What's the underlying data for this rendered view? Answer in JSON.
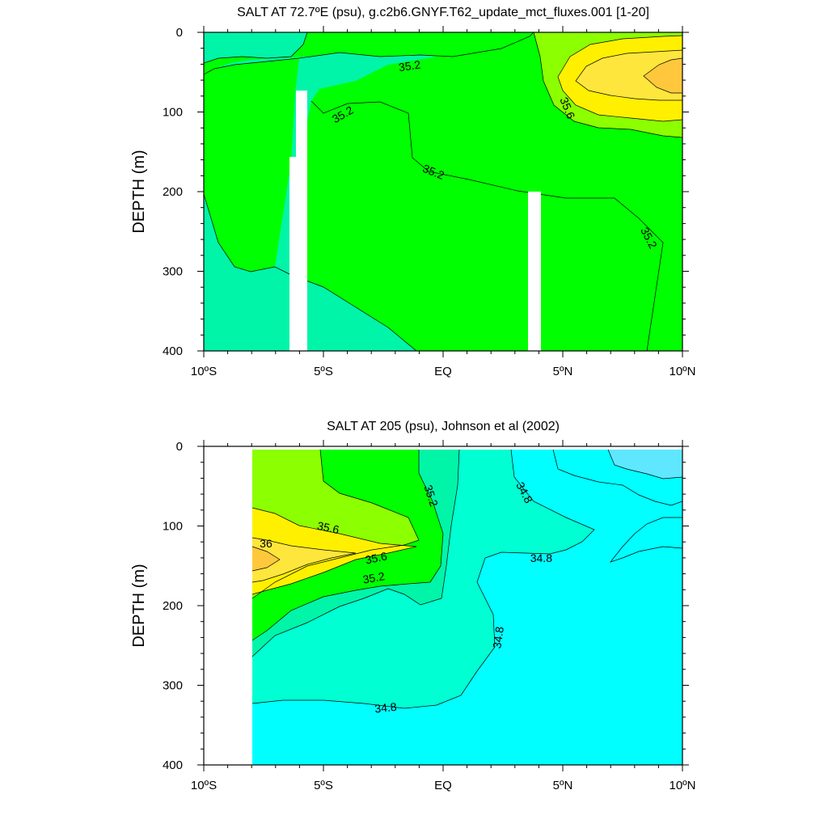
{
  "colors": {
    "s34_6": "#5fe7ff",
    "s34_8": "#00ffff",
    "s35_0": "#00ffd2",
    "s35_2": "#00f5a8",
    "s35_4": "#00ff00",
    "s35_6": "#8cff00",
    "s35_8": "#fff000",
    "s36_0": "#ffe63c",
    "s36_2": "#ffc83c",
    "missing": "#ffffff"
  },
  "chart_data": [
    {
      "type": "contour",
      "title": "SALT AT  72.7ºE (psu), g.c2b6.GNYF.T62_update_mct_fluxes.001 [1-20]",
      "ylabel": "DEPTH (m)",
      "xlim": [
        -10,
        10
      ],
      "ylim": [
        400,
        0
      ],
      "xticks": [
        {
          "value": -10,
          "label": "10ºS"
        },
        {
          "value": -5,
          "label": "5ºS"
        },
        {
          "value": 0,
          "label": "EQ"
        },
        {
          "value": 5,
          "label": "5ºN"
        },
        {
          "value": 10,
          "label": "10ºN"
        }
      ],
      "yticks": [
        {
          "value": 0,
          "label": "0"
        },
        {
          "value": 100,
          "label": "100"
        },
        {
          "value": 200,
          "label": "200"
        },
        {
          "value": 300,
          "label": "300"
        },
        {
          "value": 400,
          "label": "400"
        }
      ],
      "contour_labels": [
        {
          "lon": -1.4,
          "depth": 42,
          "text": "35.2",
          "angle": -8
        },
        {
          "lon": -4.2,
          "depth": 103,
          "text": "35.2",
          "angle": -30
        },
        {
          "lon": -0.4,
          "depth": 175,
          "text": "35.2",
          "angle": 22
        },
        {
          "lon": 5.2,
          "depth": 95,
          "text": "35.6",
          "angle": 68
        },
        {
          "lon": 8.6,
          "depth": 258,
          "text": "35.2",
          "angle": 62
        }
      ]
    },
    {
      "type": "contour",
      "title": "SALT AT 205 (psu), Johnson et al (2002)",
      "ylabel": "DEPTH (m)",
      "xlim": [
        -10,
        10
      ],
      "ylim": [
        400,
        0
      ],
      "xticks": [
        {
          "value": -10,
          "label": "10ºS"
        },
        {
          "value": -5,
          "label": "5ºS"
        },
        {
          "value": 0,
          "label": "EQ"
        },
        {
          "value": 5,
          "label": "5ºN"
        },
        {
          "value": 10,
          "label": "10ºN"
        }
      ],
      "yticks": [
        {
          "value": 0,
          "label": "0"
        },
        {
          "value": 100,
          "label": "100"
        },
        {
          "value": 200,
          "label": "200"
        },
        {
          "value": 300,
          "label": "300"
        },
        {
          "value": 400,
          "label": "400"
        }
      ],
      "contour_labels": [
        {
          "lon": -4.8,
          "depth": 102,
          "text": "35.6",
          "angle": 12
        },
        {
          "lon": -7.4,
          "depth": 122,
          "text": "36",
          "angle": 0
        },
        {
          "lon": -2.8,
          "depth": 140,
          "text": "35.6",
          "angle": -12
        },
        {
          "lon": -2.9,
          "depth": 165,
          "text": "35.2",
          "angle": -10
        },
        {
          "lon": -0.5,
          "depth": 62,
          "text": "35.2",
          "angle": 72
        },
        {
          "lon": 3.4,
          "depth": 58,
          "text": "34.8",
          "angle": 62
        },
        {
          "lon": 4.1,
          "depth": 140,
          "text": "34.8",
          "angle": 0
        },
        {
          "lon": 2.3,
          "depth": 240,
          "text": "34.8",
          "angle": -82
        },
        {
          "lon": -2.4,
          "depth": 328,
          "text": "34.8",
          "angle": -6
        }
      ]
    }
  ]
}
